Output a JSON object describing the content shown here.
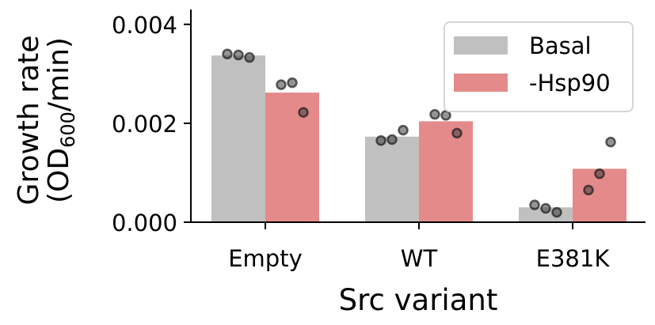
{
  "chart_data": {
    "type": "bar",
    "title": "",
    "xlabel": "Src variant",
    "ylabel": {
      "line1": "Growth rate",
      "line2_prefix": "(OD",
      "line2_sub": "600",
      "line2_suffix": "/min)"
    },
    "ylim": [
      0,
      0.0043
    ],
    "yticks": [
      "0.000",
      "0.002",
      "0.004"
    ],
    "ytick_values": [
      0,
      0.002,
      0.004
    ],
    "categories": [
      "Empty",
      "WT",
      "E381K"
    ],
    "series": [
      {
        "name": "Basal",
        "color": "#c0c0c0",
        "values": [
          0.00337,
          0.00173,
          0.0003
        ],
        "points": [
          [
            0.0034,
            0.00338,
            0.00333
          ],
          [
            0.00165,
            0.00167,
            0.00186
          ],
          [
            0.00035,
            0.00028,
            0.0002
          ]
        ]
      },
      {
        "name": "-Hsp90",
        "color": "#e58a8a",
        "values": [
          0.00262,
          0.00204,
          0.00108
        ],
        "points": [
          [
            0.00278,
            0.00282,
            0.00222
          ],
          [
            0.00218,
            0.00216,
            0.0018
          ],
          [
            0.00065,
            0.00098,
            0.00162
          ]
        ]
      }
    ],
    "legend": {
      "position": "top-right"
    },
    "grid": false
  }
}
